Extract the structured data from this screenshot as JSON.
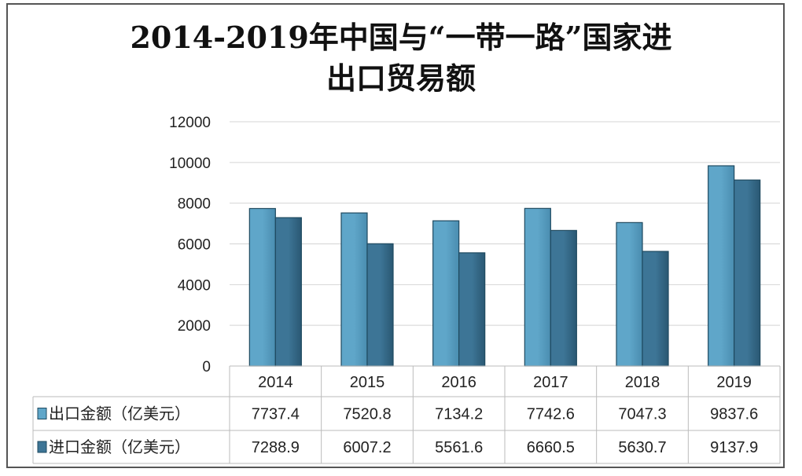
{
  "chart_data": {
    "type": "bar",
    "title_lines": [
      "2014-2019年中国与“一带一路”国家进",
      "出口贸易额"
    ],
    "categories": [
      "2014",
      "2015",
      "2016",
      "2017",
      "2018",
      "2019"
    ],
    "series": [
      {
        "name": "出口金额（亿美元）",
        "values": [
          7737.4,
          7520.8,
          7134.2,
          7742.6,
          7047.3,
          9837.6
        ],
        "value_labels": [
          "7737.4",
          "7520.8",
          "7134.2",
          "7742.6",
          "7047.3",
          "9837.6"
        ],
        "color": "#5fa6c9"
      },
      {
        "name": "进口金额（亿美元）",
        "values": [
          7288.9,
          6007.2,
          5561.6,
          6660.5,
          5630.7,
          9137.9
        ],
        "value_labels": [
          "7288.9",
          "6007.2",
          "5561.6",
          "6660.5",
          "5630.7",
          "9137.9"
        ],
        "color": "#3d7596"
      }
    ],
    "yticks": [
      "0",
      "2000",
      "4000",
      "6000",
      "8000",
      "10000",
      "12000"
    ],
    "ylim": [
      0,
      12000
    ],
    "grid": true,
    "legend": "data-table-left",
    "xlabel": "",
    "ylabel": ""
  }
}
